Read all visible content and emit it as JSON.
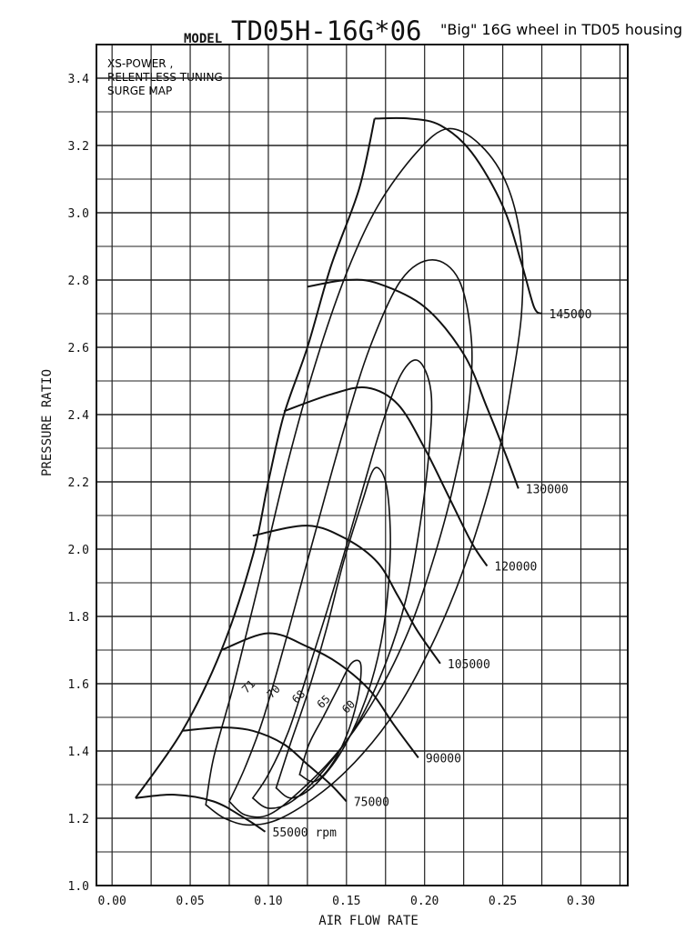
{
  "chart_data": {
    "type": "line",
    "title": {
      "prefix": "MODEL",
      "model": "TD05H-16G*06",
      "note": "\"Big\" 16G wheel in TD05 housing"
    },
    "annotation_lines": [
      "XS-POWER ,",
      "RELENTLESS TUNING",
      "SURGE MAP"
    ],
    "xlabel": "AIR FLOW RATE",
    "ylabel": "PRESSURE RATIO",
    "xlim": [
      -0.01,
      0.33
    ],
    "ylim": [
      1.0,
      3.5
    ],
    "x_ticks": [
      "0.00",
      "0.05",
      "0.10",
      "0.15",
      "0.20",
      "0.25",
      "0.30"
    ],
    "y_ticks": [
      "1.0",
      "1.2",
      "1.4",
      "1.6",
      "1.8",
      "2.0",
      "2.2",
      "2.4",
      "2.6",
      "2.8",
      "3.0",
      "3.2",
      "3.4"
    ],
    "grid": true,
    "surge_line": [
      [
        0.015,
        1.26
      ],
      [
        0.045,
        1.46
      ],
      [
        0.07,
        1.7
      ],
      [
        0.09,
        1.98
      ],
      [
        0.1,
        2.2
      ],
      [
        0.11,
        2.4
      ],
      [
        0.125,
        2.6
      ],
      [
        0.14,
        2.84
      ],
      [
        0.158,
        3.07
      ],
      [
        0.168,
        3.28
      ]
    ],
    "speed_lines": [
      {
        "label": "55000 rpm",
        "points": [
          [
            0.015,
            1.26
          ],
          [
            0.04,
            1.27
          ],
          [
            0.065,
            1.25
          ],
          [
            0.085,
            1.2
          ],
          [
            0.098,
            1.16
          ]
        ]
      },
      {
        "label": "75000",
        "points": [
          [
            0.045,
            1.46
          ],
          [
            0.07,
            1.47
          ],
          [
            0.09,
            1.46
          ],
          [
            0.11,
            1.42
          ],
          [
            0.125,
            1.36
          ],
          [
            0.14,
            1.3
          ],
          [
            0.15,
            1.25
          ]
        ]
      },
      {
        "label": "90000",
        "points": [
          [
            0.07,
            1.7
          ],
          [
            0.1,
            1.75
          ],
          [
            0.125,
            1.71
          ],
          [
            0.145,
            1.66
          ],
          [
            0.165,
            1.58
          ],
          [
            0.18,
            1.48
          ],
          [
            0.196,
            1.38
          ]
        ]
      },
      {
        "label": "105000",
        "points": [
          [
            0.09,
            2.04
          ],
          [
            0.125,
            2.07
          ],
          [
            0.15,
            2.03
          ],
          [
            0.17,
            1.96
          ],
          [
            0.183,
            1.86
          ],
          [
            0.195,
            1.76
          ],
          [
            0.21,
            1.66
          ]
        ]
      },
      {
        "label": "120000",
        "points": [
          [
            0.11,
            2.41
          ],
          [
            0.14,
            2.46
          ],
          [
            0.163,
            2.48
          ],
          [
            0.183,
            2.43
          ],
          [
            0.2,
            2.3
          ],
          [
            0.215,
            2.16
          ],
          [
            0.23,
            2.02
          ],
          [
            0.24,
            1.95
          ]
        ]
      },
      {
        "label": "130000",
        "points": [
          [
            0.125,
            2.78
          ],
          [
            0.15,
            2.8
          ],
          [
            0.17,
            2.79
          ],
          [
            0.2,
            2.72
          ],
          [
            0.225,
            2.58
          ],
          [
            0.24,
            2.42
          ],
          [
            0.252,
            2.28
          ],
          [
            0.26,
            2.18
          ]
        ]
      },
      {
        "label": "145000",
        "points": [
          [
            0.168,
            3.28
          ],
          [
            0.19,
            3.28
          ],
          [
            0.21,
            3.26
          ],
          [
            0.23,
            3.18
          ],
          [
            0.25,
            3.02
          ],
          [
            0.262,
            2.85
          ],
          [
            0.27,
            2.72
          ],
          [
            0.275,
            2.7
          ]
        ]
      }
    ],
    "efficiency_islands": [
      {
        "label": "71",
        "points": [
          [
            0.06,
            1.24
          ],
          [
            0.072,
            1.2
          ],
          [
            0.088,
            1.18
          ],
          [
            0.108,
            1.2
          ],
          [
            0.135,
            1.28
          ],
          [
            0.16,
            1.39
          ],
          [
            0.183,
            1.53
          ],
          [
            0.203,
            1.7
          ],
          [
            0.22,
            1.88
          ],
          [
            0.235,
            2.08
          ],
          [
            0.248,
            2.3
          ],
          [
            0.256,
            2.5
          ],
          [
            0.262,
            2.7
          ],
          [
            0.262,
            2.9
          ],
          [
            0.253,
            3.08
          ],
          [
            0.236,
            3.2
          ],
          [
            0.215,
            3.25
          ],
          [
            0.195,
            3.18
          ],
          [
            0.17,
            3.02
          ],
          [
            0.15,
            2.82
          ],
          [
            0.13,
            2.55
          ],
          [
            0.112,
            2.25
          ],
          [
            0.095,
            1.92
          ],
          [
            0.078,
            1.6
          ],
          [
            0.065,
            1.38
          ],
          [
            0.06,
            1.24
          ]
        ]
      },
      {
        "label": "70",
        "points": [
          [
            0.075,
            1.25
          ],
          [
            0.085,
            1.21
          ],
          [
            0.1,
            1.21
          ],
          [
            0.12,
            1.28
          ],
          [
            0.145,
            1.4
          ],
          [
            0.17,
            1.57
          ],
          [
            0.19,
            1.76
          ],
          [
            0.205,
            1.96
          ],
          [
            0.218,
            2.18
          ],
          [
            0.228,
            2.42
          ],
          [
            0.23,
            2.62
          ],
          [
            0.222,
            2.8
          ],
          [
            0.205,
            2.86
          ],
          [
            0.185,
            2.8
          ],
          [
            0.165,
            2.6
          ],
          [
            0.148,
            2.35
          ],
          [
            0.13,
            2.05
          ],
          [
            0.113,
            1.76
          ],
          [
            0.097,
            1.5
          ],
          [
            0.085,
            1.35
          ],
          [
            0.075,
            1.25
          ]
        ]
      },
      {
        "label": "68",
        "points": [
          [
            0.09,
            1.26
          ],
          [
            0.1,
            1.23
          ],
          [
            0.115,
            1.25
          ],
          [
            0.135,
            1.34
          ],
          [
            0.157,
            1.48
          ],
          [
            0.175,
            1.66
          ],
          [
            0.188,
            1.85
          ],
          [
            0.197,
            2.07
          ],
          [
            0.203,
            2.3
          ],
          [
            0.204,
            2.47
          ],
          [
            0.196,
            2.56
          ],
          [
            0.185,
            2.52
          ],
          [
            0.172,
            2.36
          ],
          [
            0.158,
            2.14
          ],
          [
            0.143,
            1.9
          ],
          [
            0.127,
            1.66
          ],
          [
            0.113,
            1.46
          ],
          [
            0.1,
            1.33
          ],
          [
            0.09,
            1.26
          ]
        ]
      },
      {
        "label": "65",
        "points": [
          [
            0.105,
            1.29
          ],
          [
            0.115,
            1.26
          ],
          [
            0.13,
            1.3
          ],
          [
            0.147,
            1.4
          ],
          [
            0.162,
            1.55
          ],
          [
            0.172,
            1.72
          ],
          [
            0.177,
            1.9
          ],
          [
            0.178,
            2.06
          ],
          [
            0.175,
            2.2
          ],
          [
            0.168,
            2.24
          ],
          [
            0.16,
            2.14
          ],
          [
            0.148,
            1.96
          ],
          [
            0.137,
            1.76
          ],
          [
            0.125,
            1.57
          ],
          [
            0.114,
            1.42
          ],
          [
            0.105,
            1.29
          ]
        ]
      },
      {
        "label": "60",
        "points": [
          [
            0.12,
            1.33
          ],
          [
            0.13,
            1.31
          ],
          [
            0.142,
            1.37
          ],
          [
            0.152,
            1.47
          ],
          [
            0.158,
            1.58
          ],
          [
            0.159,
            1.66
          ],
          [
            0.153,
            1.66
          ],
          [
            0.145,
            1.59
          ],
          [
            0.135,
            1.5
          ],
          [
            0.126,
            1.42
          ],
          [
            0.12,
            1.33
          ]
        ]
      }
    ]
  }
}
